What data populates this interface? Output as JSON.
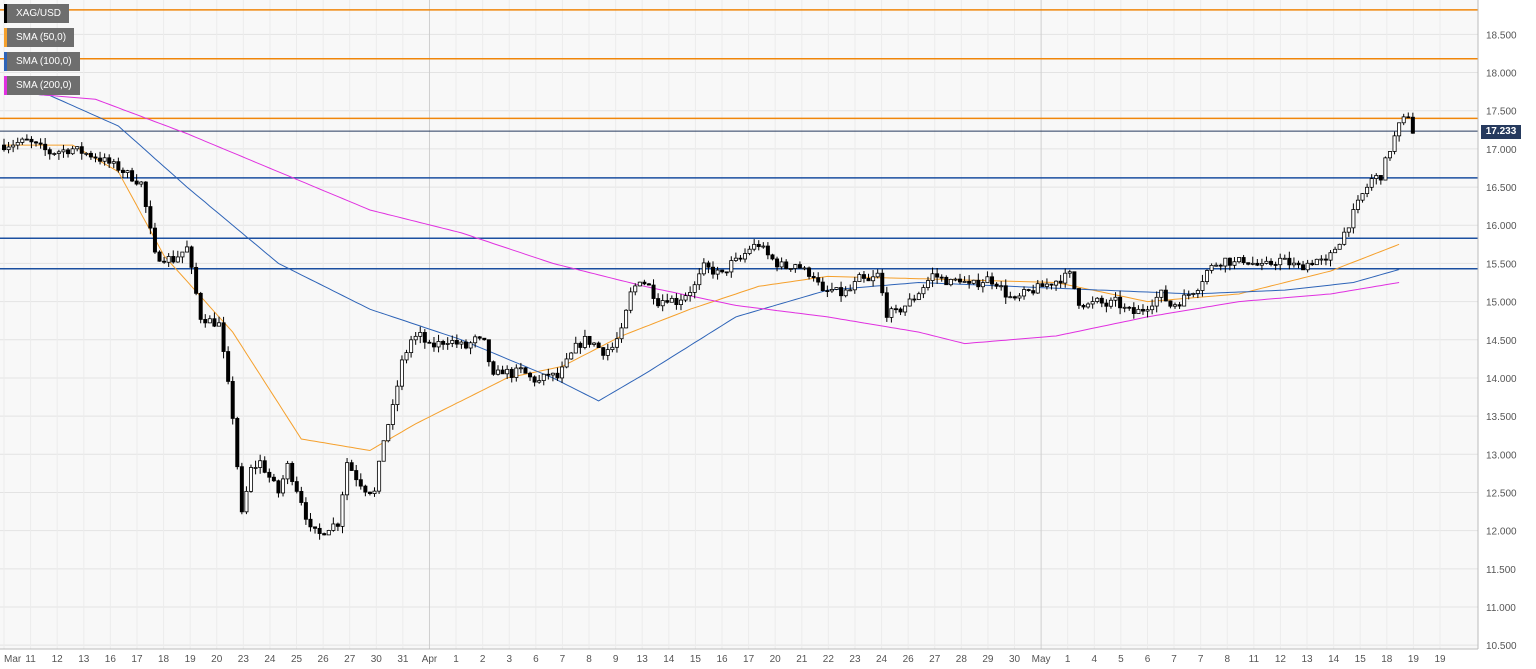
{
  "chart_data": {
    "type": "candlestick",
    "symbol": "XAG/USD",
    "last_price": "17.233",
    "legend": [
      {
        "label": "XAG/USD",
        "color": "#000000"
      },
      {
        "label": "SMA (50,0)",
        "color": "#f5a02c"
      },
      {
        "label": "SMA (100,0)",
        "color": "#2d63b7"
      },
      {
        "label": "SMA (200,0)",
        "color": "#e030e0"
      }
    ],
    "ylim": [
      10.45,
      18.95
    ],
    "y_ticks": [
      "10.500",
      "11.000",
      "11.500",
      "12.000",
      "12.500",
      "13.000",
      "13.500",
      "14.000",
      "14.500",
      "15.000",
      "15.500",
      "16.000",
      "16.500",
      "17.000",
      "17.500",
      "18.000",
      "18.500"
    ],
    "x_ticks": [
      "Mar",
      "11",
      "12",
      "13",
      "16",
      "17",
      "18",
      "19",
      "20",
      "23",
      "24",
      "25",
      "26",
      "27",
      "30",
      "31",
      "Apr",
      "1",
      "2",
      "3",
      "6",
      "7",
      "8",
      "9",
      "13",
      "14",
      "15",
      "16",
      "17",
      "20",
      "21",
      "22",
      "23",
      "24",
      "26",
      "27",
      "28",
      "29",
      "30",
      "May",
      "1",
      "4",
      "5",
      "6",
      "7",
      "7",
      "8",
      "11",
      "12",
      "13",
      "14",
      "15",
      "18",
      "19",
      "19"
    ],
    "month_separators": [
      "Apr",
      "May"
    ],
    "horizontal_levels": [
      {
        "value": 18.82,
        "color": "#f0860a"
      },
      {
        "value": 18.18,
        "color": "#f0860a"
      },
      {
        "value": 17.4,
        "color": "#f0860a"
      },
      {
        "value": 17.233,
        "color": "#263a5e"
      },
      {
        "value": 16.62,
        "color": "#1b4fa0"
      },
      {
        "value": 15.83,
        "color": "#1b4fa0"
      },
      {
        "value": 15.43,
        "color": "#1b4fa0"
      }
    ],
    "price_anchors": [
      [
        0,
        17.05
      ],
      [
        5,
        17.1
      ],
      [
        10,
        16.95
      ],
      [
        15,
        17.0
      ],
      [
        20,
        16.9
      ],
      [
        25,
        16.75
      ],
      [
        30,
        16.55
      ],
      [
        33,
        15.6
      ],
      [
        37,
        15.55
      ],
      [
        40,
        15.7
      ],
      [
        43,
        14.8
      ],
      [
        47,
        14.7
      ],
      [
        50,
        13.5
      ],
      [
        52,
        12.2
      ],
      [
        54,
        12.8
      ],
      [
        56,
        12.9
      ],
      [
        58,
        12.7
      ],
      [
        60,
        12.5
      ],
      [
        62,
        12.85
      ],
      [
        65,
        12.4
      ],
      [
        67,
        12.0
      ],
      [
        69,
        11.95
      ],
      [
        71,
        12.05
      ],
      [
        73,
        12.1
      ],
      [
        75,
        12.9
      ],
      [
        77,
        12.7
      ],
      [
        79,
        12.55
      ],
      [
        81,
        12.5
      ],
      [
        83,
        13.2
      ],
      [
        85,
        13.6
      ],
      [
        87,
        14.2
      ],
      [
        89,
        14.5
      ],
      [
        91,
        14.55
      ],
      [
        93,
        14.4
      ],
      [
        95,
        14.45
      ],
      [
        97,
        14.5
      ],
      [
        99,
        14.45
      ],
      [
        101,
        14.4
      ],
      [
        103,
        14.5
      ],
      [
        105,
        14.45
      ],
      [
        107,
        14.0
      ],
      [
        109,
        14.1
      ],
      [
        111,
        14.05
      ],
      [
        113,
        14.1
      ],
      [
        115,
        14.0
      ],
      [
        117,
        13.95
      ],
      [
        119,
        14.05
      ],
      [
        121,
        14.0
      ],
      [
        123,
        14.2
      ],
      [
        125,
        14.4
      ],
      [
        127,
        14.5
      ],
      [
        129,
        14.45
      ],
      [
        131,
        14.35
      ],
      [
        133,
        14.4
      ],
      [
        135,
        14.6
      ],
      [
        137,
        15.1
      ],
      [
        139,
        15.3
      ],
      [
        141,
        15.2
      ],
      [
        143,
        15.0
      ],
      [
        145,
        15.05
      ],
      [
        147,
        15.0
      ],
      [
        149,
        15.1
      ],
      [
        151,
        15.2
      ],
      [
        153,
        15.45
      ],
      [
        155,
        15.4
      ],
      [
        157,
        15.35
      ],
      [
        159,
        15.5
      ],
      [
        161,
        15.55
      ],
      [
        163,
        15.7
      ],
      [
        165,
        15.75
      ],
      [
        167,
        15.6
      ],
      [
        169,
        15.5
      ],
      [
        171,
        15.45
      ],
      [
        173,
        15.5
      ],
      [
        175,
        15.4
      ],
      [
        177,
        15.35
      ],
      [
        179,
        15.1
      ],
      [
        181,
        15.15
      ],
      [
        183,
        15.1
      ],
      [
        185,
        15.15
      ],
      [
        187,
        15.3
      ],
      [
        189,
        15.25
      ],
      [
        191,
        15.35
      ],
      [
        193,
        14.85
      ],
      [
        195,
        14.85
      ],
      [
        197,
        14.95
      ],
      [
        199,
        15.05
      ],
      [
        201,
        15.2
      ],
      [
        203,
        15.35
      ],
      [
        205,
        15.3
      ],
      [
        207,
        15.25
      ],
      [
        209,
        15.3
      ],
      [
        211,
        15.2
      ],
      [
        213,
        15.25
      ],
      [
        215,
        15.3
      ],
      [
        217,
        15.25
      ],
      [
        219,
        15.1
      ],
      [
        221,
        15.0
      ],
      [
        223,
        15.1
      ],
      [
        225,
        15.15
      ],
      [
        227,
        15.2
      ],
      [
        229,
        15.25
      ],
      [
        231,
        15.3
      ],
      [
        233,
        15.35
      ],
      [
        235,
        15.0
      ],
      [
        237,
        14.95
      ],
      [
        239,
        15.0
      ],
      [
        241,
        14.95
      ],
      [
        243,
        15.0
      ],
      [
        245,
        14.9
      ],
      [
        247,
        14.85
      ],
      [
        249,
        14.9
      ],
      [
        251,
        15.0
      ],
      [
        253,
        15.1
      ],
      [
        255,
        14.95
      ],
      [
        257,
        15.0
      ],
      [
        259,
        15.1
      ],
      [
        261,
        15.2
      ],
      [
        263,
        15.4
      ],
      [
        265,
        15.5
      ],
      [
        267,
        15.55
      ],
      [
        269,
        15.5
      ],
      [
        271,
        15.55
      ],
      [
        273,
        15.5
      ],
      [
        275,
        15.45
      ],
      [
        277,
        15.5
      ],
      [
        279,
        15.55
      ],
      [
        281,
        15.5
      ],
      [
        283,
        15.45
      ],
      [
        285,
        15.5
      ],
      [
        287,
        15.55
      ],
      [
        289,
        15.5
      ],
      [
        291,
        15.7
      ],
      [
        293,
        15.9
      ],
      [
        295,
        16.15
      ],
      [
        297,
        16.4
      ],
      [
        299,
        16.6
      ],
      [
        301,
        16.65
      ],
      [
        303,
        17.0
      ],
      [
        305,
        17.3
      ],
      [
        307,
        17.45
      ],
      [
        308,
        17.23
      ]
    ],
    "sma50_anchors": [
      [
        0,
        17.05
      ],
      [
        15,
        17.05
      ],
      [
        25,
        16.7
      ],
      [
        35,
        15.6
      ],
      [
        50,
        14.6
      ],
      [
        65,
        13.2
      ],
      [
        80,
        13.05
      ],
      [
        90,
        13.4
      ],
      [
        110,
        14.0
      ],
      [
        122,
        14.15
      ],
      [
        135,
        14.55
      ],
      [
        150,
        14.9
      ],
      [
        165,
        15.2
      ],
      [
        180,
        15.33
      ],
      [
        200,
        15.3
      ],
      [
        230,
        15.25
      ],
      [
        250,
        15.0
      ],
      [
        270,
        15.1
      ],
      [
        290,
        15.4
      ],
      [
        305,
        15.75
      ]
    ],
    "sma100_anchors": [
      [
        0,
        17.75
      ],
      [
        10,
        17.7
      ],
      [
        25,
        17.3
      ],
      [
        40,
        16.5
      ],
      [
        60,
        15.5
      ],
      [
        80,
        14.9
      ],
      [
        100,
        14.5
      ],
      [
        120,
        14.0
      ],
      [
        130,
        13.7
      ],
      [
        140,
        14.05
      ],
      [
        160,
        14.8
      ],
      [
        180,
        15.15
      ],
      [
        200,
        15.25
      ],
      [
        220,
        15.2
      ],
      [
        240,
        15.15
      ],
      [
        260,
        15.1
      ],
      [
        280,
        15.15
      ],
      [
        295,
        15.25
      ],
      [
        305,
        15.42
      ]
    ],
    "sma200_anchors": [
      [
        0,
        17.75
      ],
      [
        20,
        17.65
      ],
      [
        40,
        17.2
      ],
      [
        60,
        16.7
      ],
      [
        80,
        16.2
      ],
      [
        100,
        15.9
      ],
      [
        120,
        15.5
      ],
      [
        140,
        15.2
      ],
      [
        160,
        14.95
      ],
      [
        180,
        14.8
      ],
      [
        200,
        14.6
      ],
      [
        210,
        14.45
      ],
      [
        230,
        14.55
      ],
      [
        250,
        14.8
      ],
      [
        270,
        15.0
      ],
      [
        290,
        15.1
      ],
      [
        305,
        15.25
      ]
    ]
  }
}
